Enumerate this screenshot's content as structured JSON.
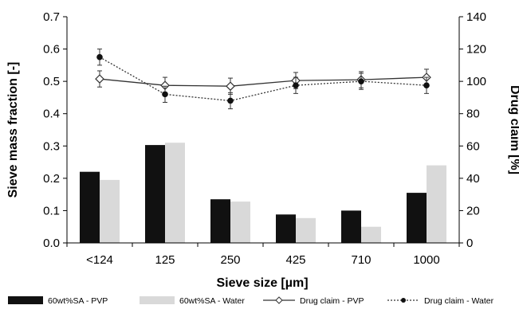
{
  "chart_data": {
    "type": "bar",
    "categories": [
      "<124",
      "125",
      "250",
      "425",
      "710",
      "1000"
    ],
    "xlabel": "Sieve size [µm]",
    "ylabel": "Sieve mass fraction [-]",
    "y2label": "Drug claim [%]",
    "ylim": [
      0,
      0.7
    ],
    "y2lim": [
      0,
      140
    ],
    "yticks": [
      "0.0",
      "0.1",
      "0.2",
      "0.3",
      "0.4",
      "0.5",
      "0.6",
      "0.7"
    ],
    "y2ticks": [
      "0",
      "20",
      "40",
      "60",
      "80",
      "100",
      "120",
      "140"
    ],
    "grid": false,
    "legend_position": "bottom",
    "bar_series": [
      {
        "name": "60wt%SA - PVP",
        "color": "#111111",
        "values": [
          0.22,
          0.303,
          0.135,
          0.088,
          0.1,
          0.155
        ]
      },
      {
        "name": "60wt%SA - Water",
        "color": "#d9d9d9",
        "values": [
          0.195,
          0.31,
          0.128,
          0.077,
          0.05,
          0.24
        ]
      }
    ],
    "line_series": [
      {
        "name": "Drug claim - PVP",
        "axis": "right",
        "marker": "open-diamond",
        "line_style": "solid",
        "values": [
          101.5,
          97.5,
          97,
          100.5,
          101,
          102.5
        ],
        "errors": [
          5,
          5,
          5,
          5,
          5,
          5
        ]
      },
      {
        "name": "Drug claim - Water",
        "axis": "right",
        "marker": "filled-circle",
        "line_style": "dotted",
        "values": [
          115,
          92,
          88,
          97.5,
          100,
          97.5
        ],
        "errors": [
          5,
          5,
          5,
          5,
          5,
          5
        ]
      }
    ]
  }
}
